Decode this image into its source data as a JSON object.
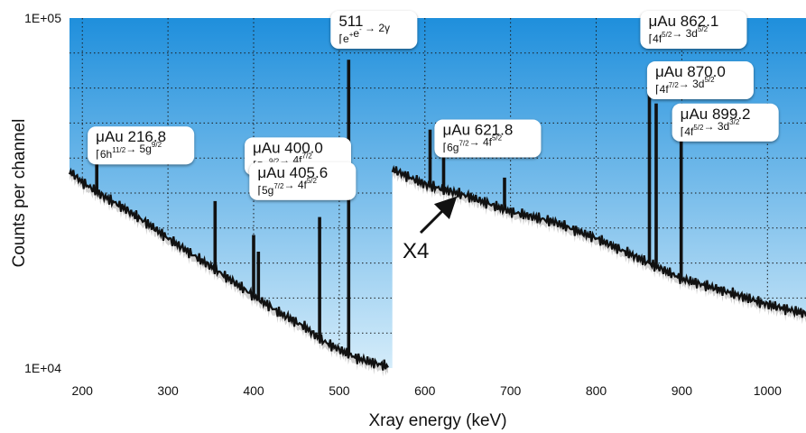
{
  "chart_data": {
    "type": "line",
    "title": "",
    "xlabel": "Xray energy (keV)",
    "ylabel": "Counts per channel",
    "xlim": [
      185,
      1045
    ],
    "ylim": [
      10000,
      100000
    ],
    "y_scale": "log",
    "x_ticks": [
      200,
      300,
      400,
      500,
      600,
      700,
      800,
      900,
      1000
    ],
    "x_tick_labels": [
      "200",
      "300",
      "400",
      "500",
      "600",
      "700",
      "800",
      "900",
      "1000"
    ],
    "y_ticks": [
      10000,
      100000
    ],
    "y_tick_labels": [
      "1E+04",
      "1E+05"
    ],
    "grid": "dotted, horizontal and vertical",
    "colors": {
      "background_top": "#1f8fdc",
      "background_bottom": "#d4ecfa",
      "spectrum": "#111111",
      "fill_under": "#ffffff",
      "grid": "#1a1a1a"
    },
    "spectrum_left": {
      "x": [
        185,
        200,
        220,
        250,
        280,
        300,
        330,
        360,
        400,
        430,
        460,
        480,
        500,
        520,
        540,
        558
      ],
      "y": [
        36500,
        34000,
        31500,
        28500,
        25500,
        23500,
        21000,
        18800,
        16100,
        14400,
        13100,
        12000,
        11300,
        10700,
        10350,
        10100
      ]
    },
    "spectrum_right": {
      "scale_factor": "X4",
      "x": [
        562,
        600,
        650,
        700,
        750,
        800,
        850,
        900,
        950,
        1000,
        1045
      ],
      "y": [
        37000,
        33500,
        31000,
        28000,
        26200,
        23500,
        20600,
        18000,
        16600,
        15200,
        14300
      ]
    },
    "peaks": [
      {
        "x": 216.8,
        "y": 40000
      },
      {
        "x": 355,
        "y": 30000
      },
      {
        "x": 400.0,
        "y": 24000
      },
      {
        "x": 405.6,
        "y": 21500
      },
      {
        "x": 477,
        "y": 27000
      },
      {
        "x": 511,
        "y": 76000
      },
      {
        "x": 606,
        "y": 48000
      },
      {
        "x": 621.8,
        "y": 44000
      },
      {
        "x": 693,
        "y": 35000
      },
      {
        "x": 862.1,
        "y": 62000
      },
      {
        "x": 870.0,
        "y": 57000
      },
      {
        "x": 899.2,
        "y": 46000
      }
    ],
    "annotations": [
      {
        "id": "au2168",
        "title": "μAu 216.8",
        "lines": [
          {
            "t": "6h",
            "s": "11/2"
          },
          {
            "t": "→ 5g",
            "s": "9/2"
          }
        ],
        "x": 216.8,
        "y": 43000
      },
      {
        "id": "au4000",
        "title": "μAu 400.0",
        "lines": [
          {
            "t": "5g",
            "s": "9/2"
          },
          {
            "t": "→ 4f",
            "s": "7/2"
          }
        ],
        "x": 400.0,
        "y": 40000
      },
      {
        "id": "au4056",
        "title": "μAu 405.6",
        "lines": [
          {
            "t": "5g",
            "s": "7/2"
          },
          {
            "t": "→ 4f",
            "s": "5/2"
          }
        ],
        "x": 405.6,
        "y": 34000
      },
      {
        "id": "p511",
        "title": "511",
        "lines": [
          {
            "t": "e",
            "s": "+"
          },
          {
            "t": "e",
            "s": "-"
          },
          {
            "t": " → 2γ",
            "s": ""
          }
        ],
        "x": 511,
        "y": 92000
      },
      {
        "id": "au6218",
        "title": "μAu 621.8",
        "lines": [
          {
            "t": "6g",
            "s": "7/2"
          },
          {
            "t": "→ 4f",
            "s": "5/2"
          }
        ],
        "x": 621.8,
        "y": 45000
      },
      {
        "id": "au8621",
        "title": "μAu 862.1",
        "lines": [
          {
            "t": "4f",
            "s": "5/2"
          },
          {
            "t": "→ 3d",
            "s": "5/2"
          }
        ],
        "x": 862.1,
        "y": 92000
      },
      {
        "id": "au8700",
        "title": "μAu 870.0",
        "lines": [
          {
            "t": "4f",
            "s": "7/2"
          },
          {
            "t": "→ 3d",
            "s": "5/2"
          }
        ],
        "x": 870.0,
        "y": 66000
      },
      {
        "id": "au8992",
        "title": "μAu 899.2",
        "lines": [
          {
            "t": "4f",
            "s": "5/2"
          },
          {
            "t": "→ 3d",
            "s": "3/2"
          }
        ],
        "x": 899.2,
        "y": 50000
      }
    ],
    "arrow_label": "X4"
  }
}
